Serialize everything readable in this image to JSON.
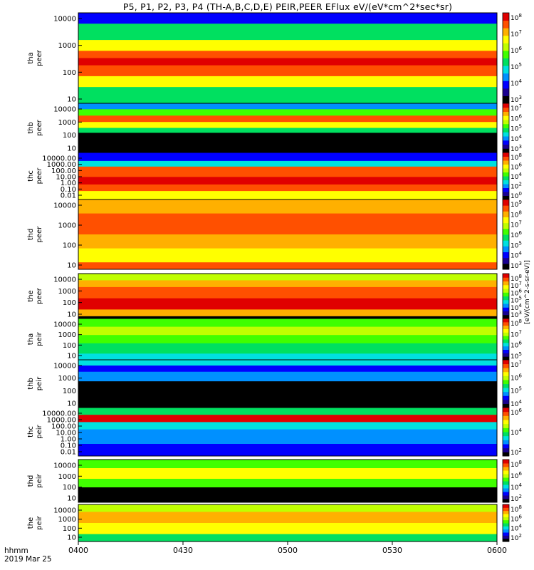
{
  "chart_data": {
    "type": "heatmap",
    "title": "P5, P1, P2, P3, P4 (TH-A,B,C,D,E) PEIR,PEER EFlux eV/(eV*cm^2*sec*sr)",
    "x_tick_labels": [
      "0400",
      "0430",
      "0500",
      "0530",
      "0600"
    ],
    "x_label_time": "hhmm",
    "x_label_date": "2019 Mar 25",
    "colorbar_label": "[eV/(cm^2-s-sr-eV)]",
    "panels": [
      {
        "name": "tha peer",
        "probe": "tha",
        "species": "peer",
        "ylabels": [
          "tha",
          "peer"
        ],
        "y_ticks": [
          "10000",
          "1000",
          "100",
          "10"
        ],
        "cb_ticks": [
          "10^8",
          "10^7",
          "10^6",
          "10^5",
          "10^4",
          "10^3"
        ]
      },
      {
        "name": "thb peer",
        "probe": "thb",
        "species": "peer",
        "ylabels": [
          "thb",
          "peer"
        ],
        "y_ticks": [
          "10000",
          "1000",
          "100",
          "10"
        ],
        "cb_ticks": [
          "10^7",
          "10^6",
          "10^5",
          "10^4",
          "10^3"
        ]
      },
      {
        "name": "thc peer",
        "probe": "thc",
        "species": "peer",
        "ylabels": [
          "thc",
          "peer"
        ],
        "y_ticks": [
          "10000.00",
          "1000.00",
          "100.00",
          "10.00",
          "1.00",
          "0.10",
          "0.01"
        ],
        "cb_ticks": [
          "10^8",
          "10^6",
          "10^4",
          "10^2",
          "10^0"
        ]
      },
      {
        "name": "thd peer",
        "probe": "thd",
        "species": "peer",
        "ylabels": [
          "thd",
          "peer"
        ],
        "y_ticks": [
          "10000",
          "1000",
          "100",
          "10"
        ],
        "cb_ticks": [
          "10^9",
          "10^8",
          "10^7",
          "10^6",
          "10^5",
          "10^4",
          "10^3"
        ]
      },
      {
        "name": "the peer",
        "probe": "the",
        "species": "peer",
        "ylabels": [
          "the",
          "peer"
        ],
        "y_ticks": [
          "10000",
          "1000",
          "100",
          "10"
        ],
        "cb_ticks": [
          "10^8",
          "10^7",
          "10^6",
          "10^5",
          "10^4",
          "10^3"
        ]
      },
      {
        "name": "tha peir",
        "probe": "tha",
        "species": "peir",
        "ylabels": [
          "tha",
          "peir"
        ],
        "y_ticks": [
          "10000",
          "1000",
          "100",
          "10"
        ],
        "cb_ticks": [
          "10^8",
          "10^7",
          "10^6",
          "10^5"
        ]
      },
      {
        "name": "thb peir",
        "probe": "thb",
        "species": "peir",
        "ylabels": [
          "thb",
          "peir"
        ],
        "y_ticks": [
          "10000",
          "1000",
          "100",
          "10"
        ],
        "cb_ticks": [
          "10^7",
          "10^6",
          "10^5",
          "10^4"
        ]
      },
      {
        "name": "thc peir",
        "probe": "thc",
        "species": "peir",
        "ylabels": [
          "thc",
          "peir"
        ],
        "y_ticks": [
          "10000.00",
          "1000.00",
          "100.00",
          "10.00",
          "1.00",
          "0.10",
          "0.01"
        ],
        "cb_ticks": [
          "10^6",
          "10^4",
          "10^2"
        ]
      },
      {
        "name": "thd peir",
        "probe": "thd",
        "species": "peir",
        "ylabels": [
          "thd",
          "peir"
        ],
        "y_ticks": [
          "10000",
          "1000",
          "100",
          "10"
        ],
        "cb_ticks": [
          "10^8",
          "10^6",
          "10^4",
          "10^2"
        ]
      },
      {
        "name": "the peir",
        "probe": "the",
        "species": "peir",
        "ylabels": [
          "the",
          "peir"
        ],
        "y_ticks": [
          "10000",
          "1000",
          "100",
          "10"
        ],
        "cb_ticks": [
          "10^8",
          "10^6",
          "10^4",
          "10^2"
        ]
      }
    ],
    "colorscale": [
      "#000000",
      "#1a0090",
      "#0000ff",
      "#0090ff",
      "#00e0e0",
      "#00e060",
      "#40ff00",
      "#c0ff00",
      "#ffff00",
      "#ffb000",
      "#ff5000",
      "#e00000"
    ]
  }
}
